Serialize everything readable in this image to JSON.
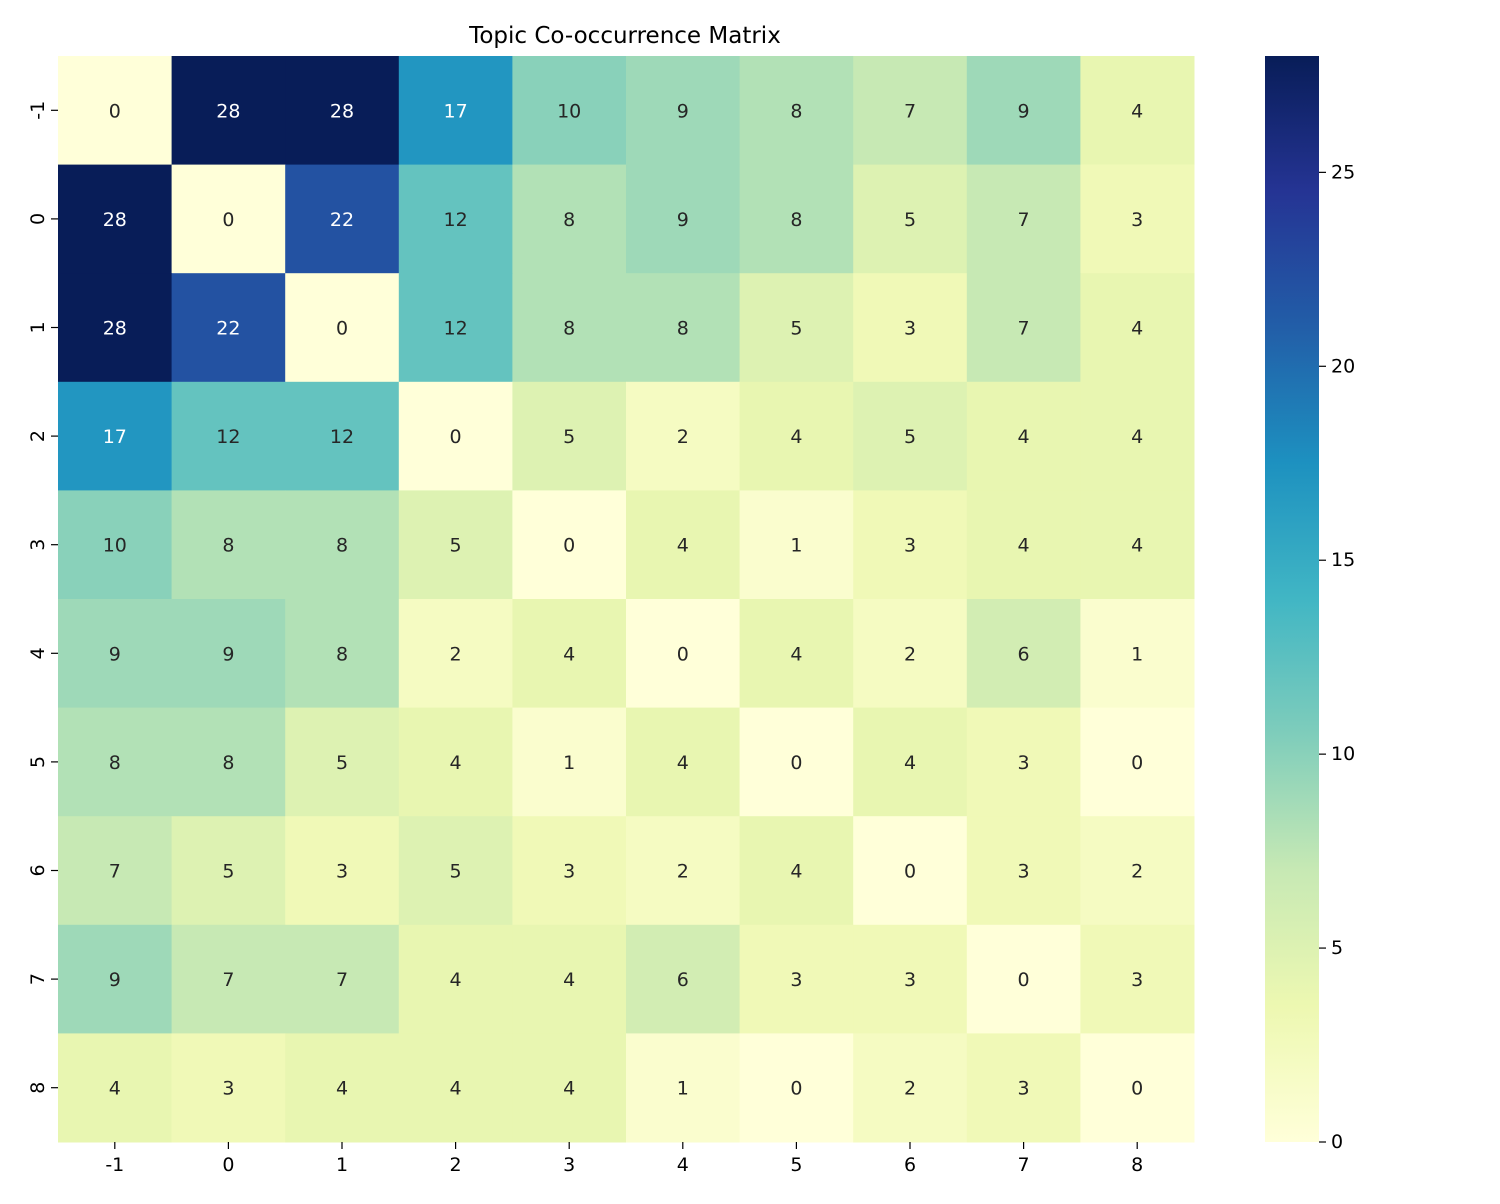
{
  "chart_data": {
    "type": "heatmap",
    "title": "Topic Co-occurrence Matrix",
    "xlabel": "",
    "ylabel": "",
    "x_categories": [
      "-1",
      "0",
      "1",
      "2",
      "3",
      "4",
      "5",
      "6",
      "7",
      "8"
    ],
    "y_categories": [
      "-1",
      "0",
      "1",
      "2",
      "3",
      "4",
      "5",
      "6",
      "7",
      "8"
    ],
    "values": [
      [
        0,
        28,
        28,
        17,
        10,
        9,
        8,
        7,
        9,
        4
      ],
      [
        28,
        0,
        22,
        12,
        8,
        9,
        8,
        5,
        7,
        3
      ],
      [
        28,
        22,
        0,
        12,
        8,
        8,
        5,
        3,
        7,
        4
      ],
      [
        17,
        12,
        12,
        0,
        5,
        2,
        4,
        5,
        4,
        4
      ],
      [
        10,
        8,
        8,
        5,
        0,
        4,
        1,
        3,
        4,
        4
      ],
      [
        9,
        9,
        8,
        2,
        4,
        0,
        4,
        2,
        6,
        1
      ],
      [
        8,
        8,
        5,
        4,
        1,
        4,
        0,
        4,
        3,
        0
      ],
      [
        7,
        5,
        3,
        5,
        3,
        2,
        4,
        0,
        3,
        2
      ],
      [
        9,
        7,
        7,
        4,
        4,
        6,
        3,
        3,
        0,
        3
      ],
      [
        4,
        3,
        4,
        4,
        4,
        1,
        0,
        2,
        3,
        0
      ]
    ],
    "annotations": true,
    "colormap": "YlGnBu",
    "value_range": [
      0,
      28
    ],
    "colorbar": {
      "ticks": [
        0,
        5,
        10,
        15,
        20,
        25
      ],
      "tick_labels": [
        "0",
        "5",
        "10",
        "15",
        "20",
        "25"
      ]
    },
    "colormap_stops": [
      "#ffffd9",
      "#edf8b1",
      "#c7e9b4",
      "#7fcdbb",
      "#41b6c4",
      "#1d91c0",
      "#225ea8",
      "#253494",
      "#081d58"
    ]
  }
}
